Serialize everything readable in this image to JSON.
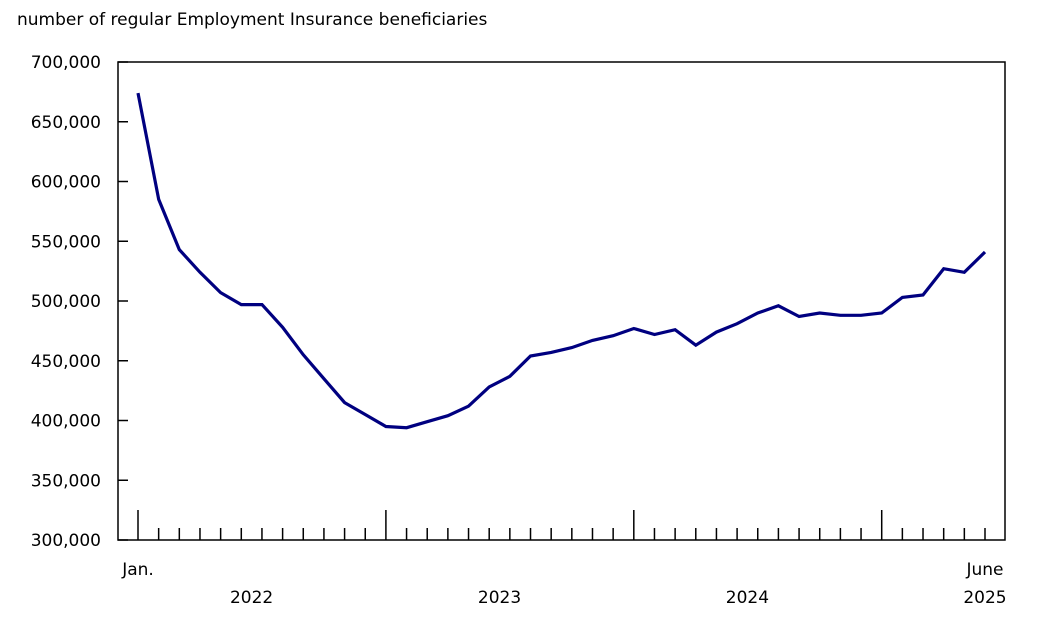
{
  "chart_data": {
    "type": "line",
    "title": "number of regular Employment Insurance beneficiaries",
    "xlabel": "",
    "ylabel": "",
    "ylim": [
      300000,
      700000
    ],
    "yticks": [
      300000,
      350000,
      400000,
      450000,
      500000,
      550000,
      600000,
      650000,
      700000
    ],
    "ytick_labels": [
      "300,000",
      "350,000",
      "400,000",
      "450,000",
      "500,000",
      "550,000",
      "600,000",
      "650,000",
      "700,000"
    ],
    "x_start_label": "Jan.",
    "x_end_label": "June",
    "year_labels": [
      "2022",
      "2023",
      "2024",
      "2025"
    ],
    "grid": false,
    "line_color": "#000080",
    "x": [
      "2022-01",
      "2022-02",
      "2022-03",
      "2022-04",
      "2022-05",
      "2022-06",
      "2022-07",
      "2022-08",
      "2022-09",
      "2022-10",
      "2022-11",
      "2022-12",
      "2023-01",
      "2023-02",
      "2023-03",
      "2023-04",
      "2023-05",
      "2023-06",
      "2023-07",
      "2023-08",
      "2023-09",
      "2023-10",
      "2023-11",
      "2023-12",
      "2024-01",
      "2024-02",
      "2024-03",
      "2024-04",
      "2024-05",
      "2024-06",
      "2024-07",
      "2024-08",
      "2024-09",
      "2024-10",
      "2024-11",
      "2024-12",
      "2025-01",
      "2025-02",
      "2025-03",
      "2025-04",
      "2025-05",
      "2025-06"
    ],
    "values": [
      674000,
      585000,
      543000,
      524000,
      507000,
      497000,
      497000,
      478000,
      455000,
      435000,
      415000,
      405000,
      395000,
      394000,
      399000,
      404000,
      412000,
      428000,
      437000,
      454000,
      457000,
      461000,
      467000,
      471000,
      477000,
      472000,
      476000,
      463000,
      474000,
      481000,
      490000,
      496000,
      487000,
      490000,
      488000,
      488000,
      490000,
      503000,
      505000,
      527000,
      524000,
      541000
    ]
  }
}
